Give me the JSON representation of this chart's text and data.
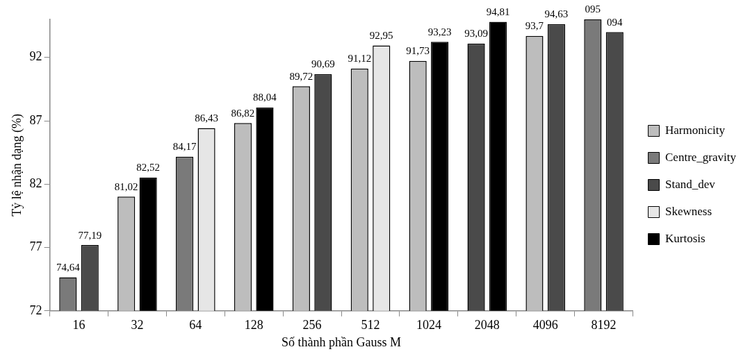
{
  "chart_data": {
    "type": "bar",
    "xlabel": "Số thành phần Gauss M",
    "ylabel": "Tỷ lệ nhận dạng (%)",
    "categories": [
      "16",
      "32",
      "64",
      "128",
      "256",
      "512",
      "1024",
      "2048",
      "4096",
      "8192"
    ],
    "ylim": [
      72,
      95
    ],
    "yticks": [
      72,
      77,
      82,
      87,
      92
    ],
    "grid": false,
    "legend": "right",
    "series": [
      {
        "name": "Harmonicity",
        "color": "#bdbdbd",
        "values": [
          null,
          81.02,
          null,
          86.82,
          89.72,
          91.12,
          91.73,
          null,
          93.7,
          null
        ],
        "value_labels": [
          null,
          "81,02",
          null,
          "86,82",
          "89,72",
          "91,12",
          "91,73",
          null,
          "93,7",
          null
        ]
      },
      {
        "name": "Centre_gravity",
        "color": "#7a7a7a",
        "values": [
          74.64,
          null,
          84.17,
          null,
          null,
          null,
          null,
          null,
          null,
          95
        ],
        "value_labels": [
          "74,64",
          null,
          "84,17",
          null,
          null,
          null,
          null,
          null,
          null,
          "095"
        ]
      },
      {
        "name": "Stand_dev",
        "color": "#4a4a4a",
        "values": [
          77.19,
          null,
          null,
          null,
          90.69,
          null,
          null,
          93.09,
          94.63,
          94
        ],
        "value_labels": [
          "77,19",
          null,
          null,
          null,
          "90,69",
          null,
          null,
          "93,09",
          "94,63",
          "094"
        ]
      },
      {
        "name": "Skewness",
        "color": "#e6e6e6",
        "values": [
          null,
          null,
          86.43,
          null,
          null,
          92.95,
          null,
          null,
          null,
          null
        ],
        "value_labels": [
          null,
          null,
          "86,43",
          null,
          null,
          "92,95",
          null,
          null,
          null,
          null
        ]
      },
      {
        "name": "Kurtosis",
        "color": "#000000",
        "values": [
          null,
          82.52,
          null,
          88.04,
          null,
          null,
          93.23,
          94.81,
          null,
          null
        ],
        "value_labels": [
          null,
          "82,52",
          null,
          "88,04",
          null,
          null,
          "93,23",
          "94,81",
          null,
          null
        ]
      }
    ]
  }
}
